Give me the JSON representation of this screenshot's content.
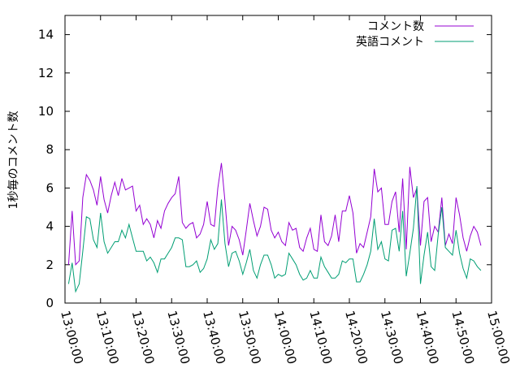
{
  "chart_data": {
    "type": "line",
    "title": "",
    "xlabel": "",
    "ylabel": "1秒毎のコメント数",
    "ylim": [
      0,
      15
    ],
    "xlim": [
      "13:00:00",
      "15:00:00"
    ],
    "yticks": [
      0,
      2,
      4,
      6,
      8,
      10,
      12,
      14
    ],
    "xticks": [
      "13:00:00",
      "13:10:00",
      "13:20:00",
      "13:30:00",
      "13:40:00",
      "13:50:00",
      "14:00:00",
      "14:10:00",
      "14:20:00",
      "14:30:00",
      "14:40:00",
      "14:50:00",
      "15:00:00"
    ],
    "grid": false,
    "legend_position": "top-right",
    "x": [
      "13:01:00",
      "13:02:00",
      "13:03:00",
      "13:04:00",
      "13:05:00",
      "13:06:00",
      "13:07:00",
      "13:08:00",
      "13:09:00",
      "13:10:00",
      "13:11:00",
      "13:12:00",
      "13:13:00",
      "13:14:00",
      "13:15:00",
      "13:16:00",
      "13:17:00",
      "13:18:00",
      "13:19:00",
      "13:20:00",
      "13:21:00",
      "13:22:00",
      "13:23:00",
      "13:24:00",
      "13:25:00",
      "13:26:00",
      "13:27:00",
      "13:28:00",
      "13:29:00",
      "13:30:00",
      "13:31:00",
      "13:32:00",
      "13:33:00",
      "13:34:00",
      "13:35:00",
      "13:36:00",
      "13:37:00",
      "13:38:00",
      "13:39:00",
      "13:40:00",
      "13:41:00",
      "13:42:00",
      "13:43:00",
      "13:44:00",
      "13:45:00",
      "13:46:00",
      "13:47:00",
      "13:48:00",
      "13:49:00",
      "13:50:00",
      "13:51:00",
      "13:52:00",
      "13:53:00",
      "13:54:00",
      "13:55:00",
      "13:56:00",
      "13:57:00",
      "13:58:00",
      "13:59:00",
      "14:00:00",
      "14:01:00",
      "14:02:00",
      "14:03:00",
      "14:04:00",
      "14:05:00",
      "14:06:00",
      "14:07:00",
      "14:08:00",
      "14:09:00",
      "14:10:00",
      "14:11:00",
      "14:12:00",
      "14:13:00",
      "14:14:00",
      "14:15:00",
      "14:16:00",
      "14:17:00",
      "14:18:00",
      "14:19:00",
      "14:20:00",
      "14:21:00",
      "14:22:00",
      "14:23:00",
      "14:24:00",
      "14:25:00",
      "14:26:00",
      "14:27:00",
      "14:28:00",
      "14:29:00",
      "14:30:00",
      "14:31:00",
      "14:32:00",
      "14:33:00",
      "14:34:00",
      "14:35:00",
      "14:36:00",
      "14:37:00",
      "14:38:00",
      "14:39:00",
      "14:40:00",
      "14:41:00",
      "14:42:00",
      "14:43:00",
      "14:44:00",
      "14:45:00",
      "14:46:00",
      "14:47:00",
      "14:48:00",
      "14:49:00",
      "14:50:00",
      "14:51:00",
      "14:52:00",
      "14:53:00",
      "14:54:00",
      "14:55:00",
      "14:56:00",
      "14:57:00"
    ],
    "series": [
      {
        "name": "コメント数",
        "color": "#9400d3",
        "values": [
          2.0,
          4.8,
          2.0,
          2.2,
          5.5,
          6.7,
          6.4,
          5.9,
          5.1,
          6.6,
          5.4,
          4.7,
          5.6,
          6.3,
          5.6,
          6.5,
          5.9,
          6.0,
          6.1,
          4.8,
          5.1,
          4.1,
          4.4,
          4.1,
          3.4,
          4.3,
          3.9,
          4.8,
          5.2,
          5.5,
          5.7,
          6.6,
          4.2,
          3.9,
          4.1,
          4.2,
          3.4,
          3.6,
          4.1,
          5.3,
          4.1,
          4.0,
          6.0,
          7.3,
          5.3,
          3.0,
          4.0,
          3.8,
          3.3,
          2.5,
          3.8,
          5.2,
          4.3,
          3.5,
          4.0,
          5.0,
          4.9,
          3.8,
          3.4,
          3.7,
          3.2,
          3.0,
          4.2,
          3.8,
          3.9,
          2.9,
          2.7,
          3.4,
          3.9,
          2.8,
          2.7,
          4.6,
          3.2,
          3.0,
          3.5,
          4.6,
          3.2,
          4.8,
          4.8,
          5.6,
          4.7,
          2.6,
          3.1,
          2.9,
          3.7,
          4.5,
          7.0,
          5.8,
          6.0,
          4.1,
          4.1,
          5.3,
          5.8,
          3.7,
          6.5,
          2.8,
          7.1,
          5.5,
          6.0,
          3.0,
          5.3,
          5.5,
          3.2,
          4.0,
          3.7,
          5.5,
          3.0,
          3.6,
          3.1,
          5.5,
          4.6,
          3.4,
          2.7,
          3.5,
          4.0,
          3.7,
          3.0
        ]
      },
      {
        "name": "英語コメント",
        "color": "#009e73",
        "values": [
          1.0,
          2.1,
          0.6,
          1.0,
          2.7,
          4.5,
          4.4,
          3.3,
          2.9,
          4.7,
          3.2,
          2.6,
          2.9,
          3.2,
          3.2,
          3.8,
          3.4,
          4.1,
          3.4,
          2.7,
          2.7,
          2.7,
          2.2,
          2.4,
          2.1,
          1.6,
          2.3,
          2.3,
          2.6,
          2.9,
          3.4,
          3.4,
          3.3,
          1.9,
          1.9,
          2.0,
          2.2,
          1.6,
          1.8,
          2.3,
          3.3,
          2.8,
          3.1,
          5.4,
          3.1,
          1.9,
          2.6,
          2.7,
          2.2,
          1.5,
          2.1,
          2.8,
          1.7,
          1.3,
          2.0,
          2.5,
          2.5,
          2.0,
          1.3,
          1.5,
          1.4,
          1.5,
          2.6,
          2.3,
          2.0,
          1.5,
          1.2,
          1.3,
          1.7,
          1.3,
          1.3,
          2.4,
          1.9,
          1.6,
          1.3,
          1.3,
          1.5,
          2.2,
          2.1,
          2.3,
          2.3,
          1.1,
          1.1,
          1.5,
          2.0,
          2.7,
          4.4,
          2.8,
          3.2,
          2.3,
          2.2,
          3.8,
          3.9,
          2.7,
          4.8,
          1.4,
          2.6,
          3.9,
          6.1,
          1.0,
          2.5,
          3.7,
          1.9,
          1.7,
          3.6,
          5.0,
          2.9,
          2.7,
          2.5,
          3.8,
          2.6,
          1.8,
          1.3,
          2.3,
          2.2,
          1.9,
          1.7
        ]
      }
    ]
  }
}
